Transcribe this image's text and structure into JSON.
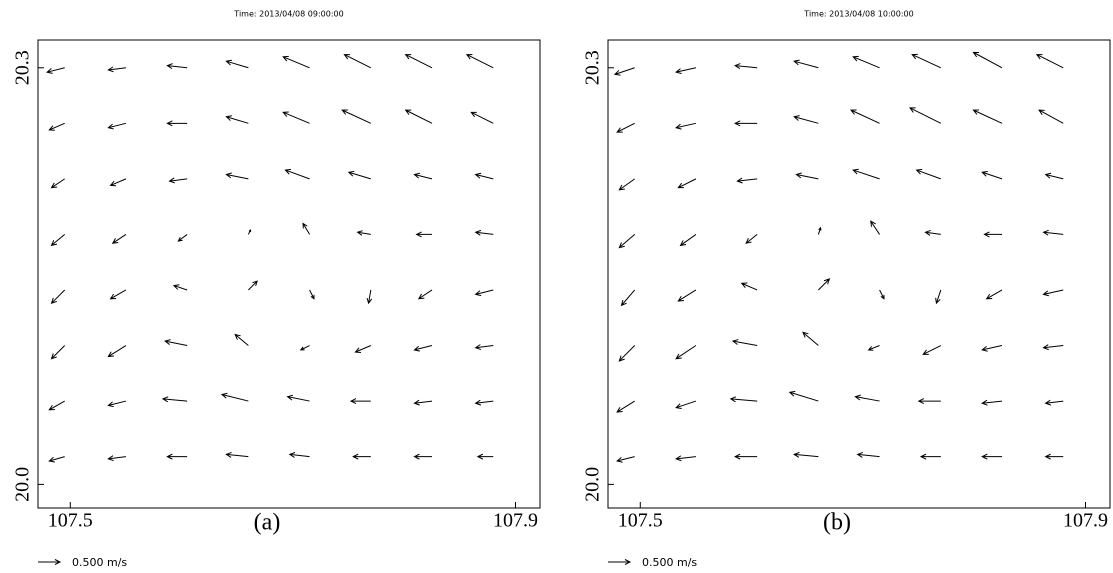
{
  "chart_data": [
    {
      "type": "quiver",
      "title": "Time: 2013/04/08 09:00:00",
      "panel_label": "(a)",
      "xlim": [
        107.471,
        107.922
      ],
      "ylim": [
        19.983,
        20.32
      ],
      "xticks": [
        107.5,
        107.9
      ],
      "yticks": [
        {
          "value": 20,
          "label": "20.0"
        },
        20.3
      ],
      "reference": {
        "value": 0.5,
        "label": "0.500 m/s"
      },
      "color": "#000000",
      "x": [
        107.495,
        107.55,
        107.605,
        107.66,
        107.715,
        107.77,
        107.825,
        107.88
      ],
      "y": [
        20.3,
        20.26,
        20.22,
        20.18,
        20.14,
        20.1,
        20.06,
        20.02
      ],
      "u": [
        [
          -0.4,
          -0.4,
          -0.45,
          -0.5,
          -0.6,
          -0.6,
          -0.6,
          -0.6
        ],
        [
          -0.35,
          -0.4,
          -0.45,
          -0.5,
          -0.6,
          -0.65,
          -0.6,
          -0.5
        ],
        [
          -0.3,
          -0.35,
          -0.4,
          -0.5,
          -0.55,
          -0.5,
          -0.4,
          -0.4
        ],
        [
          -0.3,
          -0.3,
          -0.2,
          0.05,
          -0.15,
          -0.3,
          -0.35,
          -0.4
        ],
        [
          -0.3,
          -0.35,
          -0.3,
          0.2,
          0.1,
          -0.05,
          -0.3,
          -0.4
        ],
        [
          -0.3,
          -0.4,
          -0.5,
          -0.3,
          -0.2,
          -0.35,
          -0.4,
          -0.4
        ],
        [
          -0.35,
          -0.4,
          -0.55,
          -0.6,
          -0.5,
          -0.45,
          -0.4,
          -0.4
        ],
        [
          -0.35,
          -0.4,
          -0.45,
          -0.5,
          -0.45,
          -0.4,
          -0.4,
          -0.35
        ]
      ],
      "v": [
        [
          -0.1,
          -0.05,
          0.05,
          0.15,
          0.25,
          0.3,
          0.3,
          0.3
        ],
        [
          -0.15,
          -0.1,
          0,
          0.15,
          0.25,
          0.3,
          0.3,
          0.25
        ],
        [
          -0.2,
          -0.15,
          -0.05,
          0.1,
          0.2,
          0.15,
          0.1,
          0.1
        ],
        [
          -0.25,
          -0.2,
          -0.15,
          0.1,
          0.25,
          0.05,
          0,
          0.05
        ],
        [
          -0.3,
          -0.2,
          0.1,
          0.2,
          -0.2,
          -0.3,
          -0.2,
          -0.1
        ],
        [
          -0.3,
          -0.25,
          0.1,
          0.25,
          -0.1,
          -0.15,
          -0.1,
          -0.05
        ],
        [
          -0.2,
          -0.1,
          0.05,
          0.15,
          0.1,
          0,
          -0.05,
          -0.05
        ],
        [
          -0.1,
          -0.05,
          0,
          0.05,
          0.05,
          0,
          0,
          0
        ]
      ]
    },
    {
      "type": "quiver",
      "title": "Time: 2013/04/08 10:00:00",
      "panel_label": "(b)",
      "xlim": [
        107.471,
        107.922
      ],
      "ylim": [
        19.983,
        20.32
      ],
      "xticks": [
        107.5,
        107.9
      ],
      "yticks": [
        {
          "value": 20,
          "label": "20.0"
        },
        20.3
      ],
      "reference": {
        "value": 0.5,
        "label": "0.500 m/s"
      },
      "color": "#000000",
      "x": [
        107.495,
        107.55,
        107.605,
        107.66,
        107.715,
        107.77,
        107.825,
        107.88
      ],
      "y": [
        20.3,
        20.26,
        20.22,
        20.18,
        20.14,
        20.1,
        20.06,
        20.02
      ],
      "u": [
        [
          -0.45,
          -0.45,
          -0.5,
          -0.55,
          -0.6,
          -0.65,
          -0.65,
          -0.6
        ],
        [
          -0.4,
          -0.45,
          -0.5,
          -0.55,
          -0.65,
          -0.7,
          -0.65,
          -0.55
        ],
        [
          -0.35,
          -0.4,
          -0.45,
          -0.5,
          -0.6,
          -0.55,
          -0.45,
          -0.4
        ],
        [
          -0.35,
          -0.35,
          -0.25,
          0.05,
          -0.2,
          -0.35,
          -0.4,
          -0.45
        ],
        [
          -0.3,
          -0.4,
          -0.35,
          0.25,
          0.1,
          -0.1,
          -0.35,
          -0.45
        ],
        [
          -0.35,
          -0.45,
          -0.55,
          -0.35,
          -0.25,
          -0.4,
          -0.45,
          -0.45
        ],
        [
          -0.4,
          -0.45,
          -0.6,
          -0.65,
          -0.55,
          -0.5,
          -0.45,
          -0.4
        ],
        [
          -0.4,
          -0.45,
          -0.5,
          -0.55,
          -0.5,
          -0.45,
          -0.45,
          -0.4
        ]
      ],
      "v": [
        [
          -0.15,
          -0.1,
          0.05,
          0.15,
          0.25,
          0.3,
          0.35,
          0.3
        ],
        [
          -0.2,
          -0.1,
          0,
          0.15,
          0.3,
          0.35,
          0.3,
          0.3
        ],
        [
          -0.25,
          -0.2,
          -0.05,
          0.1,
          0.2,
          0.2,
          0.15,
          0.1
        ],
        [
          -0.3,
          -0.25,
          -0.2,
          0.15,
          0.3,
          0.05,
          0,
          0.05
        ],
        [
          -0.35,
          -0.25,
          0.15,
          0.25,
          -0.2,
          -0.3,
          -0.2,
          -0.1
        ],
        [
          -0.35,
          -0.3,
          0.1,
          0.3,
          -0.1,
          -0.2,
          -0.1,
          -0.05
        ],
        [
          -0.25,
          -0.15,
          0.05,
          0.2,
          0.1,
          0,
          -0.05,
          -0.05
        ],
        [
          -0.1,
          -0.05,
          0,
          0.05,
          0.05,
          0,
          0,
          0
        ]
      ]
    }
  ]
}
